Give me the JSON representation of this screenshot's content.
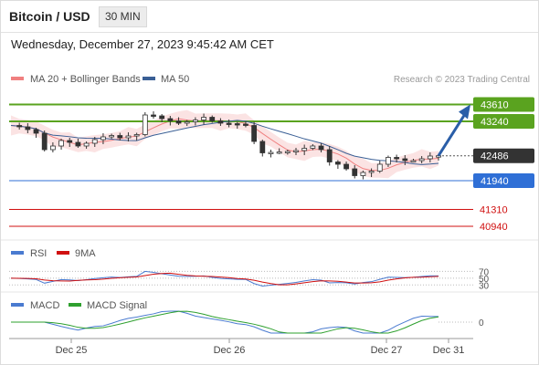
{
  "header": {
    "symbol": "Bitcoin / USD",
    "interval": "30 MIN",
    "datetime": "Wednesday, December 27, 2023 9:45:42 AM CET"
  },
  "legend": {
    "ma20_label": "MA 20 + Bollinger Bands",
    "ma20_color": "#f08080",
    "ma50_label": "MA 50",
    "ma50_color": "#3a5f95",
    "credit": "Research © 2023 Trading Central"
  },
  "chart_data": {
    "type": "candlestick",
    "ylim": [
      40700,
      43900
    ],
    "price_levels": [
      {
        "value": 43610,
        "label": "43610",
        "kind": "resistance",
        "color": "#5aa31f"
      },
      {
        "value": 43240,
        "label": "43240",
        "kind": "resistance",
        "color": "#5aa31f"
      },
      {
        "value": 42486,
        "label": "42486",
        "kind": "last-price",
        "color": "#333333"
      },
      {
        "value": 41940,
        "label": "41940",
        "kind": "support",
        "color": "#2f6fd6"
      },
      {
        "value": 41310,
        "label": "41310",
        "kind": "support",
        "color": "#d01010"
      },
      {
        "value": 40940,
        "label": "40940",
        "kind": "support",
        "color": "#d01010"
      }
    ],
    "x_ticks": [
      "Dec 25",
      "Dec 26",
      "Dec 27",
      "Dec 31"
    ],
    "projection": {
      "from": 42486,
      "to": 43610,
      "color": "#2a5ea8"
    },
    "close_path": [
      43150,
      43120,
      43060,
      42980,
      42620,
      42700,
      42820,
      42780,
      42700,
      42760,
      42840,
      42900,
      42930,
      42880,
      42920,
      42950,
      43380,
      43360,
      43300,
      43250,
      43200,
      43230,
      43270,
      43330,
      43250,
      43200,
      43190,
      43180,
      43150,
      42800,
      42550,
      42560,
      42570,
      42580,
      42600,
      42650,
      42700,
      42620,
      42350,
      42300,
      42200,
      42050,
      42120,
      42150,
      42300,
      42450,
      42420,
      42380,
      42380,
      42420,
      42480,
      42486
    ],
    "rsi": {
      "levels": [
        70,
        50,
        30
      ],
      "ma_label": "9MA",
      "label": "RSI"
    },
    "macd": {
      "levels": [
        0
      ],
      "label": "MACD",
      "signal_label": "MACD Signal"
    }
  }
}
